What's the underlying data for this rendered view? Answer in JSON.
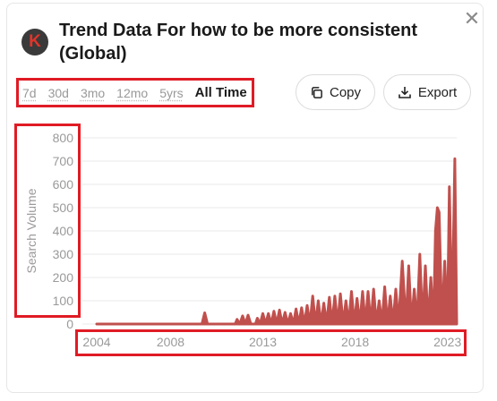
{
  "modal": {
    "title": "Trend Data For how to be more consistent (Global)",
    "logo_letter": "K",
    "close_glyph": "✕"
  },
  "time_ranges": [
    {
      "label": "7d",
      "active": false
    },
    {
      "label": "30d",
      "active": false
    },
    {
      "label": "3mo",
      "active": false
    },
    {
      "label": "12mo",
      "active": false
    },
    {
      "label": "5yrs",
      "active": false
    },
    {
      "label": "All Time",
      "active": true
    }
  ],
  "actions": {
    "copy_label": "Copy",
    "export_label": "Export",
    "copy_icon": "copy-icon",
    "export_icon": "download-icon"
  },
  "colors": {
    "accent": "#c0504d",
    "highlight": "#e01b24"
  },
  "chart_data": {
    "type": "area",
    "ylabel": "Search Volume",
    "xlabel": "",
    "ylim": [
      0,
      800
    ],
    "yticks": [
      0,
      100,
      200,
      300,
      400,
      500,
      600,
      700,
      800
    ],
    "xticks": [
      2004,
      2008,
      2013,
      2018,
      2023
    ],
    "grid": true,
    "series": [
      {
        "values": [
          [
            2004,
            0
          ],
          [
            2009.7,
            0
          ],
          [
            2009.85,
            48
          ],
          [
            2010,
            0
          ],
          [
            2011.5,
            0
          ],
          [
            2011.6,
            20
          ],
          [
            2011.75,
            0
          ],
          [
            2011.9,
            35
          ],
          [
            2012.05,
            0
          ],
          [
            2012.2,
            38
          ],
          [
            2012.35,
            0
          ],
          [
            2012.6,
            0
          ],
          [
            2012.7,
            25
          ],
          [
            2012.85,
            0
          ],
          [
            2013.0,
            45
          ],
          [
            2013.15,
            0
          ],
          [
            2013.3,
            45
          ],
          [
            2013.45,
            0
          ],
          [
            2013.6,
            55
          ],
          [
            2013.75,
            0
          ],
          [
            2013.9,
            60
          ],
          [
            2014.05,
            0
          ],
          [
            2014.2,
            50
          ],
          [
            2014.35,
            0
          ],
          [
            2014.5,
            45
          ],
          [
            2014.65,
            0
          ],
          [
            2014.8,
            65
          ],
          [
            2014.95,
            0
          ],
          [
            2015.1,
            70
          ],
          [
            2015.25,
            0
          ],
          [
            2015.4,
            80
          ],
          [
            2015.55,
            0
          ],
          [
            2015.7,
            120
          ],
          [
            2015.85,
            0
          ],
          [
            2016.0,
            100
          ],
          [
            2016.15,
            0
          ],
          [
            2016.3,
            90
          ],
          [
            2016.45,
            0
          ],
          [
            2016.6,
            115
          ],
          [
            2016.75,
            0
          ],
          [
            2016.9,
            120
          ],
          [
            2017.05,
            0
          ],
          [
            2017.2,
            130
          ],
          [
            2017.35,
            0
          ],
          [
            2017.5,
            100
          ],
          [
            2017.65,
            0
          ],
          [
            2017.8,
            140
          ],
          [
            2017.95,
            0
          ],
          [
            2018.1,
            110
          ],
          [
            2018.25,
            0
          ],
          [
            2018.4,
            140
          ],
          [
            2018.55,
            0
          ],
          [
            2018.7,
            140
          ],
          [
            2018.85,
            0
          ],
          [
            2019.0,
            150
          ],
          [
            2019.15,
            0
          ],
          [
            2019.3,
            100
          ],
          [
            2019.45,
            0
          ],
          [
            2019.6,
            160
          ],
          [
            2019.75,
            0
          ],
          [
            2019.9,
            120
          ],
          [
            2020.05,
            0
          ],
          [
            2020.2,
            150
          ],
          [
            2020.35,
            0
          ],
          [
            2020.55,
            270
          ],
          [
            2020.75,
            0
          ],
          [
            2020.9,
            250
          ],
          [
            2021.05,
            0
          ],
          [
            2021.2,
            150
          ],
          [
            2021.35,
            0
          ],
          [
            2021.5,
            300
          ],
          [
            2021.65,
            0
          ],
          [
            2021.8,
            250
          ],
          [
            2021.95,
            0
          ],
          [
            2022.1,
            200
          ],
          [
            2022.25,
            0
          ],
          [
            2022.35,
            400
          ],
          [
            2022.45,
            500
          ],
          [
            2022.55,
            480
          ],
          [
            2022.7,
            0
          ],
          [
            2022.85,
            270
          ],
          [
            2023.0,
            0
          ],
          [
            2023.1,
            590
          ],
          [
            2023.25,
            0
          ],
          [
            2023.4,
            710
          ],
          [
            2023.5,
            0
          ]
        ]
      }
    ]
  }
}
